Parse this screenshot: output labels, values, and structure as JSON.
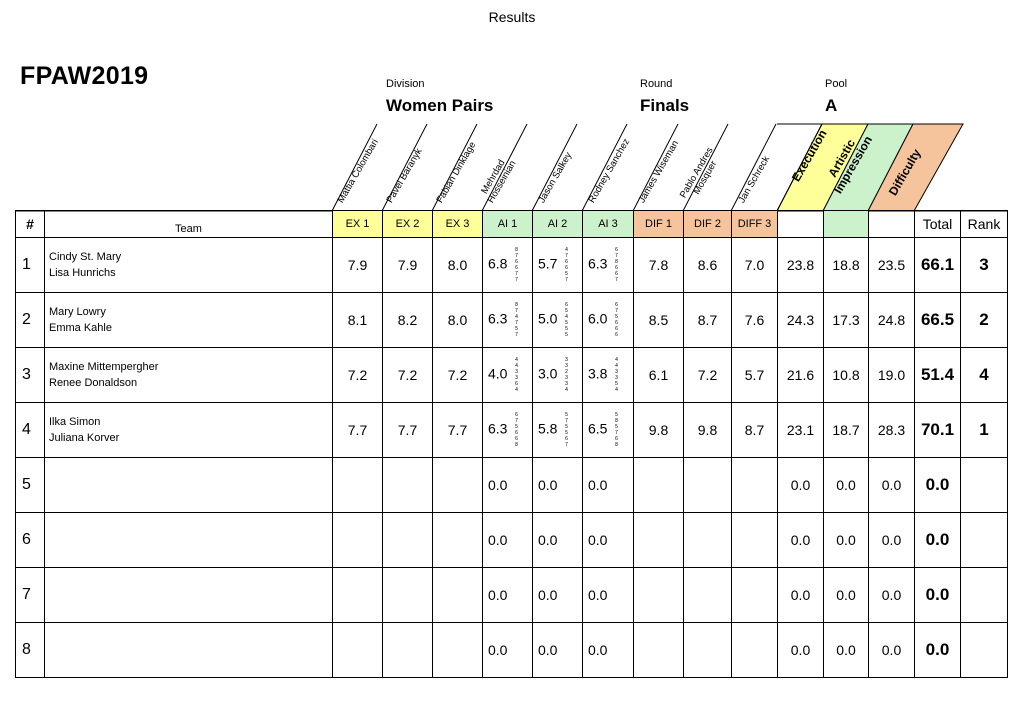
{
  "window_title": "Results",
  "event": "FPAW2019",
  "division": {
    "label": "Division",
    "value": "Women Pairs"
  },
  "round": {
    "label": "Round",
    "value": "Finals"
  },
  "pool": {
    "label": "Pool",
    "value": "A"
  },
  "judges": [
    {
      "name": "Mattia Colombari"
    },
    {
      "name": "Pavel Baranyk"
    },
    {
      "name": "Fabian Dinklage"
    },
    {
      "name": "Mehrdad\nHosseinian"
    },
    {
      "name": "Jason Salkey"
    },
    {
      "name": "Rodney Sanchez"
    },
    {
      "name": "James Wiseman"
    },
    {
      "name": "Pablo Andres\nMosquer"
    },
    {
      "name": "Jan Schreck"
    }
  ],
  "categories": {
    "execution": "Execution",
    "artistic": "Artistic\nImpression",
    "difficulty": "Difficulty"
  },
  "columns": {
    "num": "#",
    "team": "Team",
    "judge_cols": [
      "EX 1",
      "EX 2",
      "EX 3",
      "AI 1",
      "AI 2",
      "AI 3",
      "DIF 1",
      "DIF 2",
      "DIFF 3"
    ],
    "total": "Total",
    "rank": "Rank"
  },
  "colors": {
    "ex": "#ffff99",
    "ai": "#ccf2cc",
    "dif": "#f5c49c"
  },
  "rows": [
    {
      "num": "1",
      "team": [
        "Cindy St. Mary",
        "Lisa Hunrichs"
      ],
      "scores": [
        "7.9",
        "7.9",
        "8.0",
        "6.8",
        "5.7",
        "6.3",
        "7.8",
        "8.6",
        "7.0"
      ],
      "ai_detail": [
        "8\n7\n6\n6\n7\n7",
        "4\n7\n6\n6\n5\n7",
        "6\n7\n8\n6\n6\n7"
      ],
      "ex": "23.8",
      "ai": "18.8",
      "dif": "23.5",
      "total": "66.1",
      "rank": "3"
    },
    {
      "num": "2",
      "team": [
        "Mary Lowry",
        "Emma Kahle"
      ],
      "scores": [
        "8.1",
        "8.2",
        "8.0",
        "6.3",
        "5.0",
        "6.0",
        "8.5",
        "8.7",
        "7.6"
      ],
      "ai_detail": [
        "8\n7\n4\n7\n5\n7",
        "6\n5\n4\n5\n5\n5",
        "6\n7\n5\n6\n6\n6"
      ],
      "ex": "24.3",
      "ai": "17.3",
      "dif": "24.8",
      "total": "66.5",
      "rank": "2"
    },
    {
      "num": "3",
      "team": [
        "Maxine Mittempergher",
        "Renee Donaldson"
      ],
      "scores": [
        "7.2",
        "7.2",
        "7.2",
        "4.0",
        "3.0",
        "3.8",
        "6.1",
        "7.2",
        "5.7"
      ],
      "ai_detail": [
        "4\n4\n3\n3\n6\n4",
        "3\n3\n2\n3\n3\n4",
        "4\n4\n3\n3\n5\n4"
      ],
      "ex": "21.6",
      "ai": "10.8",
      "dif": "19.0",
      "total": "51.4",
      "rank": "4"
    },
    {
      "num": "4",
      "team": [
        "Ilka Simon",
        "Juliana Korver"
      ],
      "scores": [
        "7.7",
        "7.7",
        "7.7",
        "6.3",
        "5.8",
        "6.5",
        "9.8",
        "9.8",
        "8.7"
      ],
      "ai_detail": [
        "6\n7\n5\n6\n6\n8",
        "5\n7\n5\n5\n6\n7",
        "5\n8\n5\n7\n6\n8"
      ],
      "ex": "23.1",
      "ai": "18.7",
      "dif": "28.3",
      "total": "70.1",
      "rank": "1"
    },
    {
      "num": "5",
      "team": [
        "",
        ""
      ],
      "scores": [
        "",
        "",
        "",
        "0.0",
        "0.0",
        "0.0",
        "",
        "",
        ""
      ],
      "ai_detail": [
        "",
        "",
        ""
      ],
      "ex": "0.0",
      "ai": "0.0",
      "dif": "0.0",
      "total": "0.0",
      "rank": ""
    },
    {
      "num": "6",
      "team": [
        "",
        ""
      ],
      "scores": [
        "",
        "",
        "",
        "0.0",
        "0.0",
        "0.0",
        "",
        "",
        ""
      ],
      "ai_detail": [
        "",
        "",
        ""
      ],
      "ex": "0.0",
      "ai": "0.0",
      "dif": "0.0",
      "total": "0.0",
      "rank": ""
    },
    {
      "num": "7",
      "team": [
        "",
        ""
      ],
      "scores": [
        "",
        "",
        "",
        "0.0",
        "0.0",
        "0.0",
        "",
        "",
        ""
      ],
      "ai_detail": [
        "",
        "",
        ""
      ],
      "ex": "0.0",
      "ai": "0.0",
      "dif": "0.0",
      "total": "0.0",
      "rank": ""
    },
    {
      "num": "8",
      "team": [
        "",
        ""
      ],
      "scores": [
        "",
        "",
        "",
        "0.0",
        "0.0",
        "0.0",
        "",
        "",
        ""
      ],
      "ai_detail": [
        "",
        "",
        ""
      ],
      "ex": "0.0",
      "ai": "0.0",
      "dif": "0.0",
      "total": "0.0",
      "rank": ""
    }
  ]
}
